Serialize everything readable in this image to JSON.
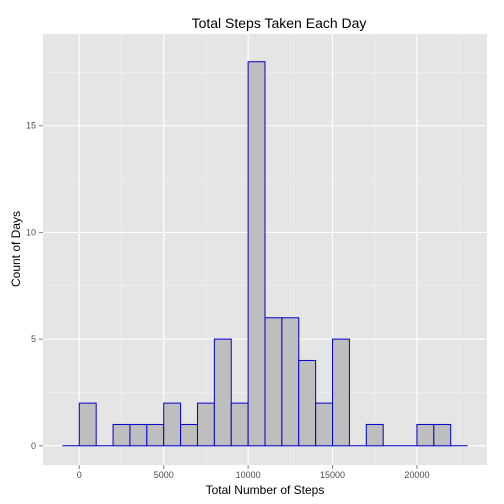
{
  "chart_data": {
    "type": "bar",
    "title": "Total Steps Taken Each Day",
    "xlabel": "Total Number of Steps",
    "ylabel": "Count of Days",
    "binwidth": 1000,
    "bin_starts": [
      -1000,
      0,
      1000,
      2000,
      3000,
      4000,
      5000,
      6000,
      7000,
      8000,
      9000,
      10000,
      11000,
      12000,
      13000,
      14000,
      15000,
      16000,
      17000,
      18000,
      19000,
      20000,
      21000,
      22000
    ],
    "values": [
      0,
      2,
      0,
      1,
      1,
      1,
      2,
      1,
      2,
      5,
      2,
      18,
      6,
      6,
      4,
      2,
      5,
      0,
      1,
      0,
      0,
      1,
      1,
      0
    ],
    "xlim": [
      -2150,
      24150
    ],
    "ylim": [
      -0.9,
      19.3
    ],
    "x_ticks": [
      0,
      5000,
      10000,
      15000,
      20000
    ],
    "x_tick_labels": [
      "0",
      "5000",
      "10000",
      "15000",
      "20000"
    ],
    "y_ticks": [
      0,
      5,
      10,
      15
    ],
    "y_tick_labels": [
      "0",
      "5",
      "10",
      "15"
    ],
    "grid": true,
    "colors": {
      "panel_background": "#e5e5e5",
      "grid_major": "#ffffff",
      "grid_minor": "#f2f2f2",
      "bar_fill": "#bebebe",
      "bar_outline": "#0000cd",
      "tick_mark": "#7f7f7f"
    }
  }
}
